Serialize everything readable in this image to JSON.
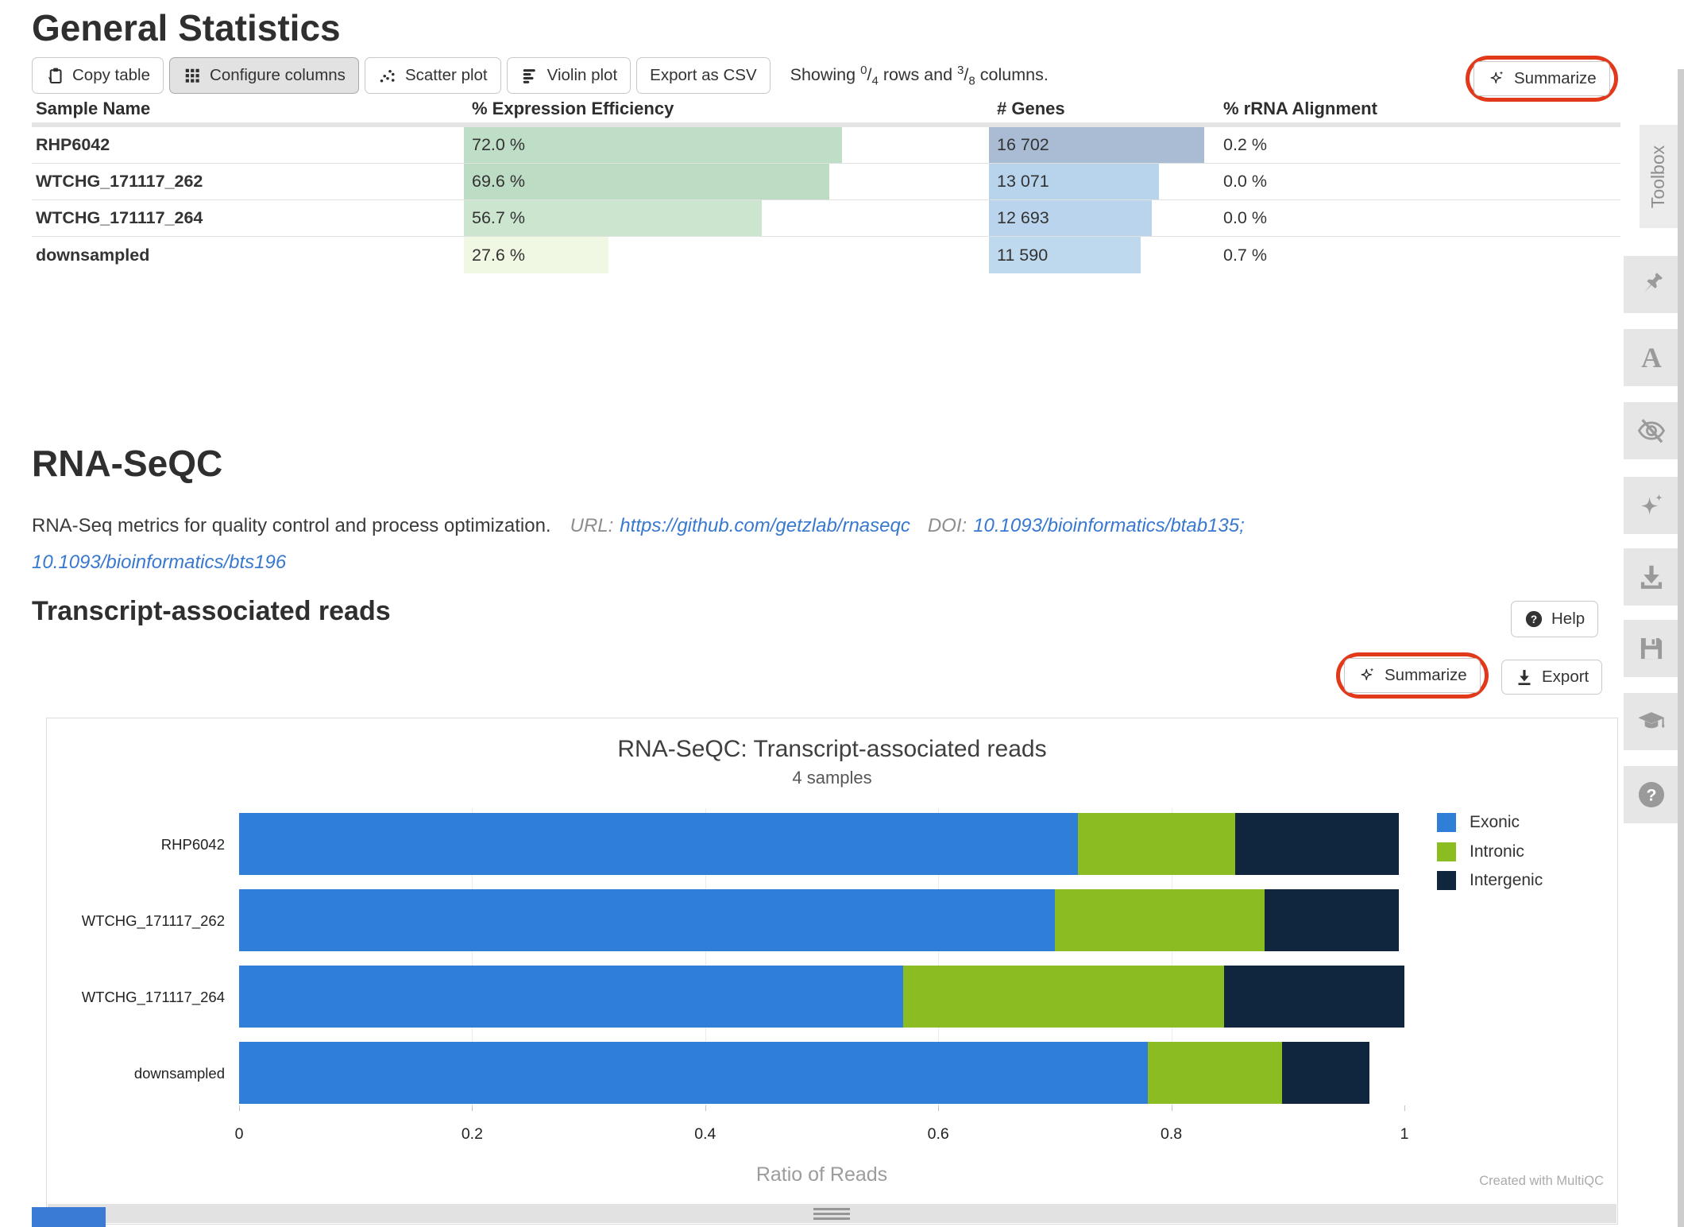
{
  "general_stats": {
    "title": "General Statistics",
    "toolbar": {
      "buttons": [
        {
          "name": "copy-table-button",
          "icon": "clipboard-icon",
          "label": "Copy table",
          "active": false
        },
        {
          "name": "configure-columns-button",
          "icon": "grid-icon",
          "label": "Configure columns",
          "active": true
        },
        {
          "name": "scatter-plot-button",
          "icon": "scatter-icon",
          "label": "Scatter plot",
          "active": false
        },
        {
          "name": "violin-plot-button",
          "icon": "violin-icon",
          "label": "Violin plot",
          "active": false
        },
        {
          "name": "export-csv-button",
          "icon": null,
          "label": "Export as CSV",
          "active": false
        }
      ],
      "showing": {
        "prefix": "Showing",
        "rows_shown": "0",
        "rows_total": "4",
        "middle": "rows and",
        "cols_shown": "3",
        "cols_total": "8",
        "suffix": "columns."
      },
      "summarize_label": "Summarize"
    },
    "table": {
      "columns": [
        "Sample Name",
        "% Expression Efficiency",
        "# Genes",
        "% rRNA Alignment"
      ],
      "rows": [
        {
          "sample": "RHP6042",
          "expression_efficiency": "72.0 %",
          "expression_pct": 72.0,
          "expression_bar_color": "#bedec8",
          "genes": "16 702",
          "genes_value": 16702,
          "genes_bar_pct": 95,
          "genes_bar_color": "#a9bcd4",
          "rrna_alignment": "0.2 %"
        },
        {
          "sample": "WTCHG_171117_262",
          "expression_efficiency": "69.6 %",
          "expression_pct": 69.6,
          "expression_bar_color": "#bddcc4",
          "genes": "13 071",
          "genes_value": 13071,
          "genes_bar_pct": 75,
          "genes_bar_color": "#b8d3ec",
          "rrna_alignment": "0.0 %"
        },
        {
          "sample": "WTCHG_171117_264",
          "expression_efficiency": "56.7 %",
          "expression_pct": 56.7,
          "expression_bar_color": "#cbe5cf",
          "genes": "12 693",
          "genes_value": 12693,
          "genes_bar_pct": 72,
          "genes_bar_color": "#b9d4ec",
          "rrna_alignment": "0.0 %"
        },
        {
          "sample": "downsampled",
          "expression_efficiency": "27.6 %",
          "expression_pct": 27.6,
          "expression_bar_color": "#f0f8e3",
          "genes": "11 590",
          "genes_value": 11590,
          "genes_bar_pct": 67,
          "genes_bar_color": "#bed8ee",
          "rrna_alignment": "0.7 %"
        }
      ]
    }
  },
  "module": {
    "title": "RNA-SeQC",
    "description": "RNA-Seq metrics for quality control and process optimization.",
    "url_label": "URL:",
    "url": "https://github.com/getzlab/rnaseqc",
    "doi_label": "DOI:",
    "doi_line1": "10.1093/bioinformatics/btab135;",
    "doi_line2": "10.1093/bioinformatics/bts196"
  },
  "section": {
    "title": "Transcript-associated reads",
    "help_label": "Help",
    "summarize_label": "Summarize",
    "export_label": "Export"
  },
  "chart_data": {
    "type": "bar",
    "orientation": "horizontal",
    "stacked": true,
    "title": "RNA-SeQC: Transcript-associated reads",
    "subtitle": "4 samples",
    "xlabel": "Ratio of Reads",
    "xlim": [
      0,
      1
    ],
    "xticks": [
      0,
      0.2,
      0.4,
      0.6,
      0.8,
      1
    ],
    "grid": true,
    "legend_position": "right",
    "categories": [
      "RHP6042",
      "WTCHG_171117_262",
      "WTCHG_171117_264",
      "downsampled"
    ],
    "series": [
      {
        "name": "Exonic",
        "color": "#2f7ed8",
        "values": [
          0.72,
          0.7,
          0.57,
          0.78
        ]
      },
      {
        "name": "Intronic",
        "color": "#8bbc21",
        "values": [
          0.135,
          0.18,
          0.275,
          0.115
        ]
      },
      {
        "name": "Intergenic",
        "color": "#10263f",
        "values": [
          0.14,
          0.115,
          0.155,
          0.075
        ]
      }
    ],
    "watermark": "Created with MultiQC"
  },
  "toolbox": {
    "label": "Toolbox",
    "icons": [
      "pin-icon",
      "font-icon",
      "eye-slash-icon",
      "sparkle-icon",
      "download-icon",
      "save-icon",
      "graduation-cap-icon",
      "question-circle-icon"
    ]
  },
  "annotation_color": "#e2391b"
}
